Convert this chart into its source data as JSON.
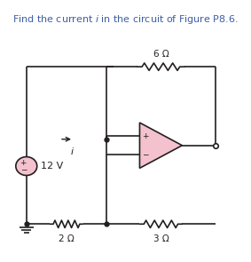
{
  "title_text": "Find the current $i$ in the circuit of Figure P8.6.",
  "bg_color": "#ffffff",
  "circuit_color": "#231f20",
  "opamp_fill": "#f4c2ce",
  "source_fill": "#f4c2ce",
  "figsize": [
    2.83,
    2.95
  ],
  "dpi": 100,
  "label_6ohm": "6 Ω",
  "label_2ohm": "2 Ω",
  "label_3ohm": "3 Ω",
  "label_12v": "12 V",
  "label_i": "i",
  "title_color": "#3c5fa0",
  "title_fontsize": 8.0,
  "label_fontsize": 7.5,
  "lw": 1.2
}
